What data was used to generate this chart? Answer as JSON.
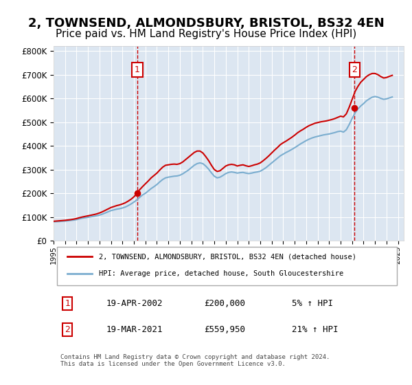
{
  "title": "2, TOWNSEND, ALMONDSBURY, BRISTOL, BS32 4EN",
  "subtitle": "Price paid vs. HM Land Registry's House Price Index (HPI)",
  "title_fontsize": 13,
  "subtitle_fontsize": 11,
  "ylabel_ticks": [
    "£0",
    "£100K",
    "£200K",
    "£300K",
    "£400K",
    "£500K",
    "£600K",
    "£700K",
    "£800K"
  ],
  "ytick_vals": [
    0,
    100000,
    200000,
    300000,
    400000,
    500000,
    600000,
    700000,
    800000
  ],
  "ylim": [
    0,
    820000
  ],
  "xlim_start": 1995.0,
  "xlim_end": 2025.5,
  "background_color": "#dce6f1",
  "plot_bg_color": "#dce6f1",
  "grid_color": "#ffffff",
  "transaction1_date": 2002.29,
  "transaction1_price": 200000,
  "transaction2_date": 2021.21,
  "transaction2_price": 559950,
  "legend_line1": "2, TOWNSEND, ALMONDSBURY, BRISTOL, BS32 4EN (detached house)",
  "legend_line2": "HPI: Average price, detached house, South Gloucestershire",
  "annotation1_label": "1",
  "annotation1_date": "19-APR-2002",
  "annotation1_price": "£200,000",
  "annotation1_hpi": "5% ↑ HPI",
  "annotation2_label": "2",
  "annotation2_date": "19-MAR-2021",
  "annotation2_price": "£559,950",
  "annotation2_hpi": "21% ↑ HPI",
  "footer": "Contains HM Land Registry data © Crown copyright and database right 2024.\nThis data is licensed under the Open Government Licence v3.0.",
  "hpi_color": "#7aadcf",
  "price_color": "#cc0000",
  "vline_color": "#cc0000",
  "hpi_data": {
    "years": [
      1995.0,
      1995.25,
      1995.5,
      1995.75,
      1996.0,
      1996.25,
      1996.5,
      1996.75,
      1997.0,
      1997.25,
      1997.5,
      1997.75,
      1998.0,
      1998.25,
      1998.5,
      1998.75,
      1999.0,
      1999.25,
      1999.5,
      1999.75,
      2000.0,
      2000.25,
      2000.5,
      2000.75,
      2001.0,
      2001.25,
      2001.5,
      2001.75,
      2002.0,
      2002.25,
      2002.5,
      2002.75,
      2003.0,
      2003.25,
      2003.5,
      2003.75,
      2004.0,
      2004.25,
      2004.5,
      2004.75,
      2005.0,
      2005.25,
      2005.5,
      2005.75,
      2006.0,
      2006.25,
      2006.5,
      2006.75,
      2007.0,
      2007.25,
      2007.5,
      2007.75,
      2008.0,
      2008.25,
      2008.5,
      2008.75,
      2009.0,
      2009.25,
      2009.5,
      2009.75,
      2010.0,
      2010.25,
      2010.5,
      2010.75,
      2011.0,
      2011.25,
      2011.5,
      2011.75,
      2012.0,
      2012.25,
      2012.5,
      2012.75,
      2013.0,
      2013.25,
      2013.5,
      2013.75,
      2014.0,
      2014.25,
      2014.5,
      2014.75,
      2015.0,
      2015.25,
      2015.5,
      2015.75,
      2016.0,
      2016.25,
      2016.5,
      2016.75,
      2017.0,
      2017.25,
      2017.5,
      2017.75,
      2018.0,
      2018.25,
      2018.5,
      2018.75,
      2019.0,
      2019.25,
      2019.5,
      2019.75,
      2020.0,
      2020.25,
      2020.5,
      2020.75,
      2021.0,
      2021.25,
      2021.5,
      2021.75,
      2022.0,
      2022.25,
      2022.5,
      2022.75,
      2023.0,
      2023.25,
      2023.5,
      2023.75,
      2024.0,
      2024.25,
      2024.5
    ],
    "values": [
      80000,
      80500,
      81000,
      82000,
      83000,
      84000,
      85500,
      87000,
      89000,
      92000,
      95000,
      97000,
      99000,
      101000,
      103000,
      105500,
      108000,
      112000,
      117000,
      122000,
      127000,
      130000,
      133000,
      135000,
      138000,
      142000,
      148000,
      155000,
      163000,
      172000,
      183000,
      193000,
      200000,
      210000,
      220000,
      228000,
      237000,
      248000,
      258000,
      265000,
      268000,
      270000,
      272000,
      273000,
      276000,
      282000,
      290000,
      298000,
      308000,
      318000,
      325000,
      328000,
      325000,
      315000,
      302000,
      286000,
      272000,
      265000,
      268000,
      275000,
      283000,
      288000,
      290000,
      288000,
      285000,
      287000,
      288000,
      285000,
      283000,
      285000,
      288000,
      290000,
      293000,
      300000,
      308000,
      318000,
      328000,
      338000,
      348000,
      358000,
      365000,
      372000,
      378000,
      385000,
      392000,
      400000,
      408000,
      415000,
      422000,
      428000,
      433000,
      437000,
      440000,
      443000,
      446000,
      448000,
      450000,
      453000,
      456000,
      460000,
      462000,
      458000,
      468000,
      490000,
      515000,
      538000,
      555000,
      568000,
      578000,
      590000,
      598000,
      605000,
      608000,
      605000,
      600000,
      596000,
      598000,
      602000,
      606000
    ]
  },
  "price_line_data": {
    "years": [
      1995.0,
      1995.25,
      1995.5,
      1995.75,
      1996.0,
      1996.25,
      1996.5,
      1996.75,
      1997.0,
      1997.25,
      1997.5,
      1997.75,
      1998.0,
      1998.25,
      1998.5,
      1998.75,
      1999.0,
      1999.25,
      1999.5,
      1999.75,
      2000.0,
      2000.25,
      2000.5,
      2000.75,
      2001.0,
      2001.25,
      2001.5,
      2001.75,
      2002.0,
      2002.25,
      2002.5,
      2002.75,
      2003.0,
      2003.25,
      2003.5,
      2003.75,
      2004.0,
      2004.25,
      2004.5,
      2004.75,
      2005.0,
      2005.25,
      2005.5,
      2005.75,
      2006.0,
      2006.25,
      2006.5,
      2006.75,
      2007.0,
      2007.25,
      2007.5,
      2007.75,
      2008.0,
      2008.25,
      2008.5,
      2008.75,
      2009.0,
      2009.25,
      2009.5,
      2009.75,
      2010.0,
      2010.25,
      2010.5,
      2010.75,
      2011.0,
      2011.25,
      2011.5,
      2011.75,
      2012.0,
      2012.25,
      2012.5,
      2012.75,
      2013.0,
      2013.25,
      2013.5,
      2013.75,
      2014.0,
      2014.25,
      2014.5,
      2014.75,
      2015.0,
      2015.25,
      2015.5,
      2015.75,
      2016.0,
      2016.25,
      2016.5,
      2016.75,
      2017.0,
      2017.25,
      2017.5,
      2017.75,
      2018.0,
      2018.25,
      2018.5,
      2018.75,
      2019.0,
      2019.25,
      2019.5,
      2019.75,
      2020.0,
      2020.25,
      2020.5,
      2020.75,
      2021.0,
      2021.25,
      2021.5,
      2021.75,
      2022.0,
      2022.25,
      2022.5,
      2022.75,
      2023.0,
      2023.25,
      2023.5,
      2023.75,
      2024.0,
      2024.25,
      2024.5
    ],
    "values": [
      82000,
      83000,
      84000,
      85000,
      86000,
      87500,
      89000,
      91000,
      93500,
      97000,
      100000,
      102500,
      105000,
      107500,
      110000,
      113000,
      117000,
      122000,
      128000,
      134000,
      140000,
      144000,
      148000,
      151000,
      155000,
      160000,
      167000,
      175000,
      185000,
      200000,
      215000,
      228000,
      240000,
      252000,
      265000,
      275000,
      285000,
      298000,
      310000,
      318000,
      320000,
      322000,
      323000,
      322000,
      325000,
      332000,
      342000,
      352000,
      362000,
      372000,
      378000,
      378000,
      370000,
      355000,
      338000,
      318000,
      300000,
      292000,
      295000,
      305000,
      315000,
      320000,
      322000,
      320000,
      315000,
      318000,
      320000,
      316000,
      313000,
      316000,
      320000,
      323000,
      328000,
      337000,
      347000,
      358000,
      370000,
      382000,
      393000,
      405000,
      413000,
      420000,
      428000,
      436000,
      445000,
      455000,
      463000,
      470000,
      478000,
      485000,
      490000,
      495000,
      498000,
      501000,
      503000,
      505000,
      508000,
      511000,
      515000,
      520000,
      525000,
      522000,
      535000,
      563000,
      595000,
      628000,
      650000,
      668000,
      680000,
      692000,
      700000,
      705000,
      705000,
      700000,
      692000,
      686000,
      688000,
      693000,
      697000
    ]
  },
  "xtick_years": [
    1995,
    1996,
    1997,
    1998,
    1999,
    2000,
    2001,
    2002,
    2003,
    2004,
    2005,
    2006,
    2007,
    2008,
    2009,
    2010,
    2011,
    2012,
    2013,
    2014,
    2015,
    2016,
    2017,
    2018,
    2019,
    2020,
    2021,
    2022,
    2023,
    2024,
    2025
  ]
}
